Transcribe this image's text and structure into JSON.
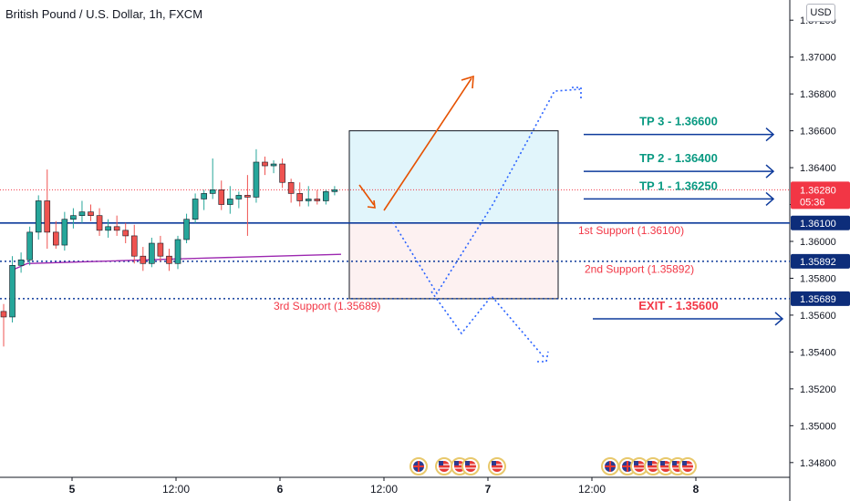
{
  "header": {
    "title": "British Pound / U.S. Dollar, 1h, FXCM",
    "currency_button": "USD"
  },
  "chart_data": {
    "type": "candlestick",
    "y_ticks": [
      "1.37200",
      "1.37000",
      "1.36800",
      "1.36600",
      "1.36400",
      "1.36200",
      "1.36000",
      "1.35800",
      "1.35600",
      "1.35400",
      "1.35200",
      "1.35000",
      "1.34800"
    ],
    "y_tick_values": [
      1.372,
      1.37,
      1.368,
      1.366,
      1.364,
      1.362,
      1.36,
      1.358,
      1.356,
      1.354,
      1.352,
      1.35,
      1.348
    ],
    "ylim": [
      1.3472,
      1.3728
    ],
    "x_ticks": [
      "5",
      "12:00",
      "6",
      "12:00",
      "7",
      "12:00",
      "8"
    ],
    "x_bold": [
      true,
      false,
      true,
      false,
      true,
      false,
      true
    ],
    "candles": [
      {
        "o": 1.3562,
        "h": 1.3566,
        "l": 1.3543,
        "c": 1.3559
      },
      {
        "o": 1.3559,
        "h": 1.3592,
        "l": 1.3556,
        "c": 1.3587
      },
      {
        "o": 1.3587,
        "h": 1.3594,
        "l": 1.3583,
        "c": 1.359
      },
      {
        "o": 1.359,
        "h": 1.3608,
        "l": 1.3587,
        "c": 1.3605
      },
      {
        "o": 1.3605,
        "h": 1.3625,
        "l": 1.3601,
        "c": 1.3622
      },
      {
        "o": 1.3622,
        "h": 1.3639,
        "l": 1.3596,
        "c": 1.3605
      },
      {
        "o": 1.3605,
        "h": 1.3611,
        "l": 1.3596,
        "c": 1.3598
      },
      {
        "o": 1.3598,
        "h": 1.3616,
        "l": 1.3595,
        "c": 1.3612
      },
      {
        "o": 1.3612,
        "h": 1.3618,
        "l": 1.3607,
        "c": 1.3614
      },
      {
        "o": 1.3614,
        "h": 1.3622,
        "l": 1.361,
        "c": 1.3616
      },
      {
        "o": 1.3616,
        "h": 1.362,
        "l": 1.3611,
        "c": 1.3614
      },
      {
        "o": 1.3614,
        "h": 1.3618,
        "l": 1.3603,
        "c": 1.3606
      },
      {
        "o": 1.3606,
        "h": 1.3612,
        "l": 1.3602,
        "c": 1.3608
      },
      {
        "o": 1.3608,
        "h": 1.3614,
        "l": 1.3603,
        "c": 1.3606
      },
      {
        "o": 1.3606,
        "h": 1.361,
        "l": 1.3599,
        "c": 1.3603
      },
      {
        "o": 1.3603,
        "h": 1.3609,
        "l": 1.3588,
        "c": 1.3592
      },
      {
        "o": 1.3592,
        "h": 1.3597,
        "l": 1.3584,
        "c": 1.3588
      },
      {
        "o": 1.3588,
        "h": 1.3602,
        "l": 1.3586,
        "c": 1.3599
      },
      {
        "o": 1.3599,
        "h": 1.3603,
        "l": 1.3589,
        "c": 1.3592
      },
      {
        "o": 1.3592,
        "h": 1.3596,
        "l": 1.3584,
        "c": 1.3588
      },
      {
        "o": 1.3588,
        "h": 1.3603,
        "l": 1.3585,
        "c": 1.3601
      },
      {
        "o": 1.3601,
        "h": 1.3615,
        "l": 1.3599,
        "c": 1.3612
      },
      {
        "o": 1.3612,
        "h": 1.3626,
        "l": 1.361,
        "c": 1.3623
      },
      {
        "o": 1.3623,
        "h": 1.3628,
        "l": 1.3617,
        "c": 1.3626
      },
      {
        "o": 1.3626,
        "h": 1.3645,
        "l": 1.3623,
        "c": 1.3628
      },
      {
        "o": 1.3628,
        "h": 1.3633,
        "l": 1.3617,
        "c": 1.362
      },
      {
        "o": 1.362,
        "h": 1.363,
        "l": 1.3615,
        "c": 1.3623
      },
      {
        "o": 1.3623,
        "h": 1.3627,
        "l": 1.3618,
        "c": 1.3625
      },
      {
        "o": 1.3625,
        "h": 1.3636,
        "l": 1.3603,
        "c": 1.3624
      },
      {
        "o": 1.3624,
        "h": 1.365,
        "l": 1.3621,
        "c": 1.3643
      },
      {
        "o": 1.3643,
        "h": 1.3646,
        "l": 1.3636,
        "c": 1.3641
      },
      {
        "o": 1.3641,
        "h": 1.3644,
        "l": 1.3637,
        "c": 1.3642
      },
      {
        "o": 1.3642,
        "h": 1.3645,
        "l": 1.3629,
        "c": 1.3632
      },
      {
        "o": 1.3632,
        "h": 1.3634,
        "l": 1.3621,
        "c": 1.3626
      },
      {
        "o": 1.3626,
        "h": 1.3632,
        "l": 1.3619,
        "c": 1.3622
      },
      {
        "o": 1.3622,
        "h": 1.363,
        "l": 1.3619,
        "c": 1.3623
      },
      {
        "o": 1.3623,
        "h": 1.3628,
        "l": 1.362,
        "c": 1.3622
      },
      {
        "o": 1.3622,
        "h": 1.3628,
        "l": 1.362,
        "c": 1.3627
      },
      {
        "o": 1.3627,
        "h": 1.363,
        "l": 1.3625,
        "c": 1.3628
      }
    ],
    "moving_average": [
      [
        1.3585,
        1.3588
      ],
      [
        1.3591,
        1.3593
      ]
    ],
    "current_price": {
      "value": "1.36280",
      "countdown": "05:36",
      "price": 1.3628
    },
    "levels": [
      {
        "price": 1.361,
        "label": "1.36100",
        "style": "solid"
      },
      {
        "price": 1.35892,
        "label": "1.35892",
        "style": "dotted"
      },
      {
        "price": 1.35689,
        "label": "1.35689",
        "style": "dotted"
      }
    ],
    "support_labels": [
      "1st Support (1.36100)",
      "2nd Support (1.35892)",
      "3rd Support (1.35689)"
    ],
    "targets": [
      {
        "label": "TP 3 - 1.36600",
        "price": 1.366
      },
      {
        "label": "TP 2 - 1.36400",
        "price": 1.364
      },
      {
        "label": "TP 1 - 1.36250",
        "price": 1.3625
      },
      {
        "label": "EXIT - 1.35600",
        "price": 1.356
      }
    ],
    "colors": {
      "bull": "#26a69a",
      "bear": "#ef5350",
      "level_line": "#0d3a9b",
      "target": "#089981",
      "exit": "#f23645",
      "support_text": "#f23645",
      "arrow_blue": "#2962ff",
      "arrow_orange": "#e65100",
      "ma": "#9c27b0",
      "price_tag": "#f23645",
      "level_tag": "#0d2d7a"
    },
    "grid": false,
    "event_icons": [
      "uk-flag-icon",
      "us-flag-icon",
      "us-flag-icon",
      "us-flag-icon",
      "us-flag-icon",
      "uk-flag-icon",
      "uk-flag-icon",
      "us-flag-icon",
      "us-flag-icon",
      "us-flag-icon",
      "us-flag-icon",
      "us-flag-icon"
    ]
  }
}
